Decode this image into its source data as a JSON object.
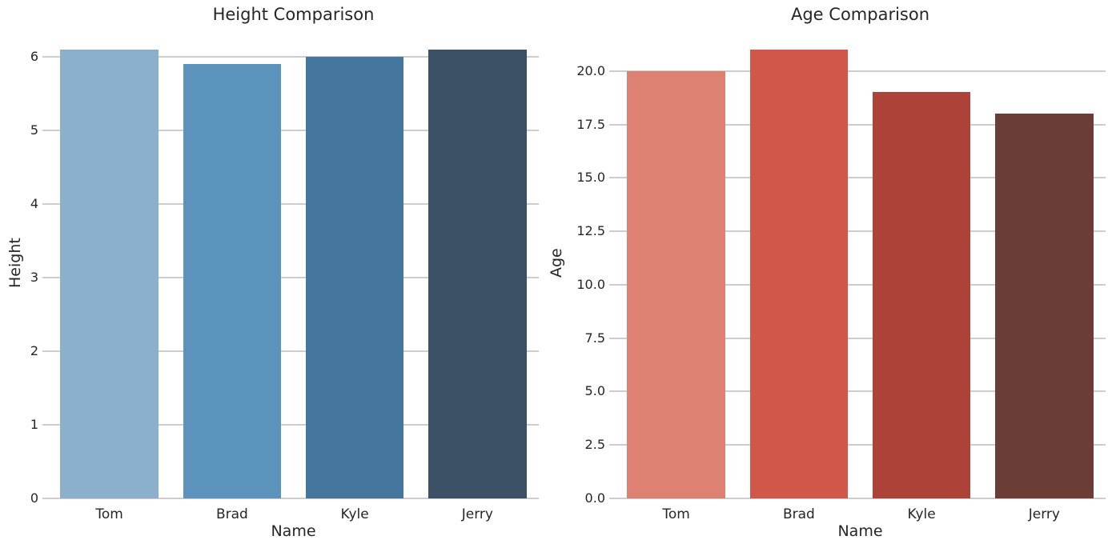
{
  "figure": {
    "background_color": "#ffffff",
    "text_color": "#262626",
    "grid_color": "#cdcdcd"
  },
  "chart_data": [
    {
      "type": "bar",
      "title": "Height Comparison",
      "xlabel": "Name",
      "ylabel": "Height",
      "categories": [
        "Tom",
        "Brad",
        "Kyle",
        "Jerry"
      ],
      "values": [
        6.1,
        5.9,
        6.0,
        6.1
      ],
      "ylim": [
        0,
        6.405
      ],
      "yticks": [
        0,
        1,
        2,
        3,
        4,
        5,
        6
      ],
      "ytick_labels": [
        "0",
        "1",
        "2",
        "3",
        "4",
        "5",
        "6"
      ],
      "bar_colors": [
        "#8cb0cb",
        "#5c93bc",
        "#45769d",
        "#3c5165"
      ],
      "grid": true,
      "legend": null
    },
    {
      "type": "bar",
      "title": "Age Comparison",
      "xlabel": "Name",
      "ylabel": "Age",
      "categories": [
        "Tom",
        "Brad",
        "Kyle",
        "Jerry"
      ],
      "values": [
        20,
        21,
        19,
        18
      ],
      "ylim": [
        0,
        22.05
      ],
      "yticks": [
        0,
        2.5,
        5,
        7.5,
        10,
        12.5,
        15,
        17.5,
        20
      ],
      "ytick_labels": [
        "0.0",
        "2.5",
        "5.0",
        "7.5",
        "10.0",
        "12.5",
        "15.0",
        "17.5",
        "20.0"
      ],
      "bar_colors": [
        "#dd8173",
        "#d0574a",
        "#ad4239",
        "#6c3c36"
      ],
      "grid": true,
      "legend": null
    }
  ]
}
